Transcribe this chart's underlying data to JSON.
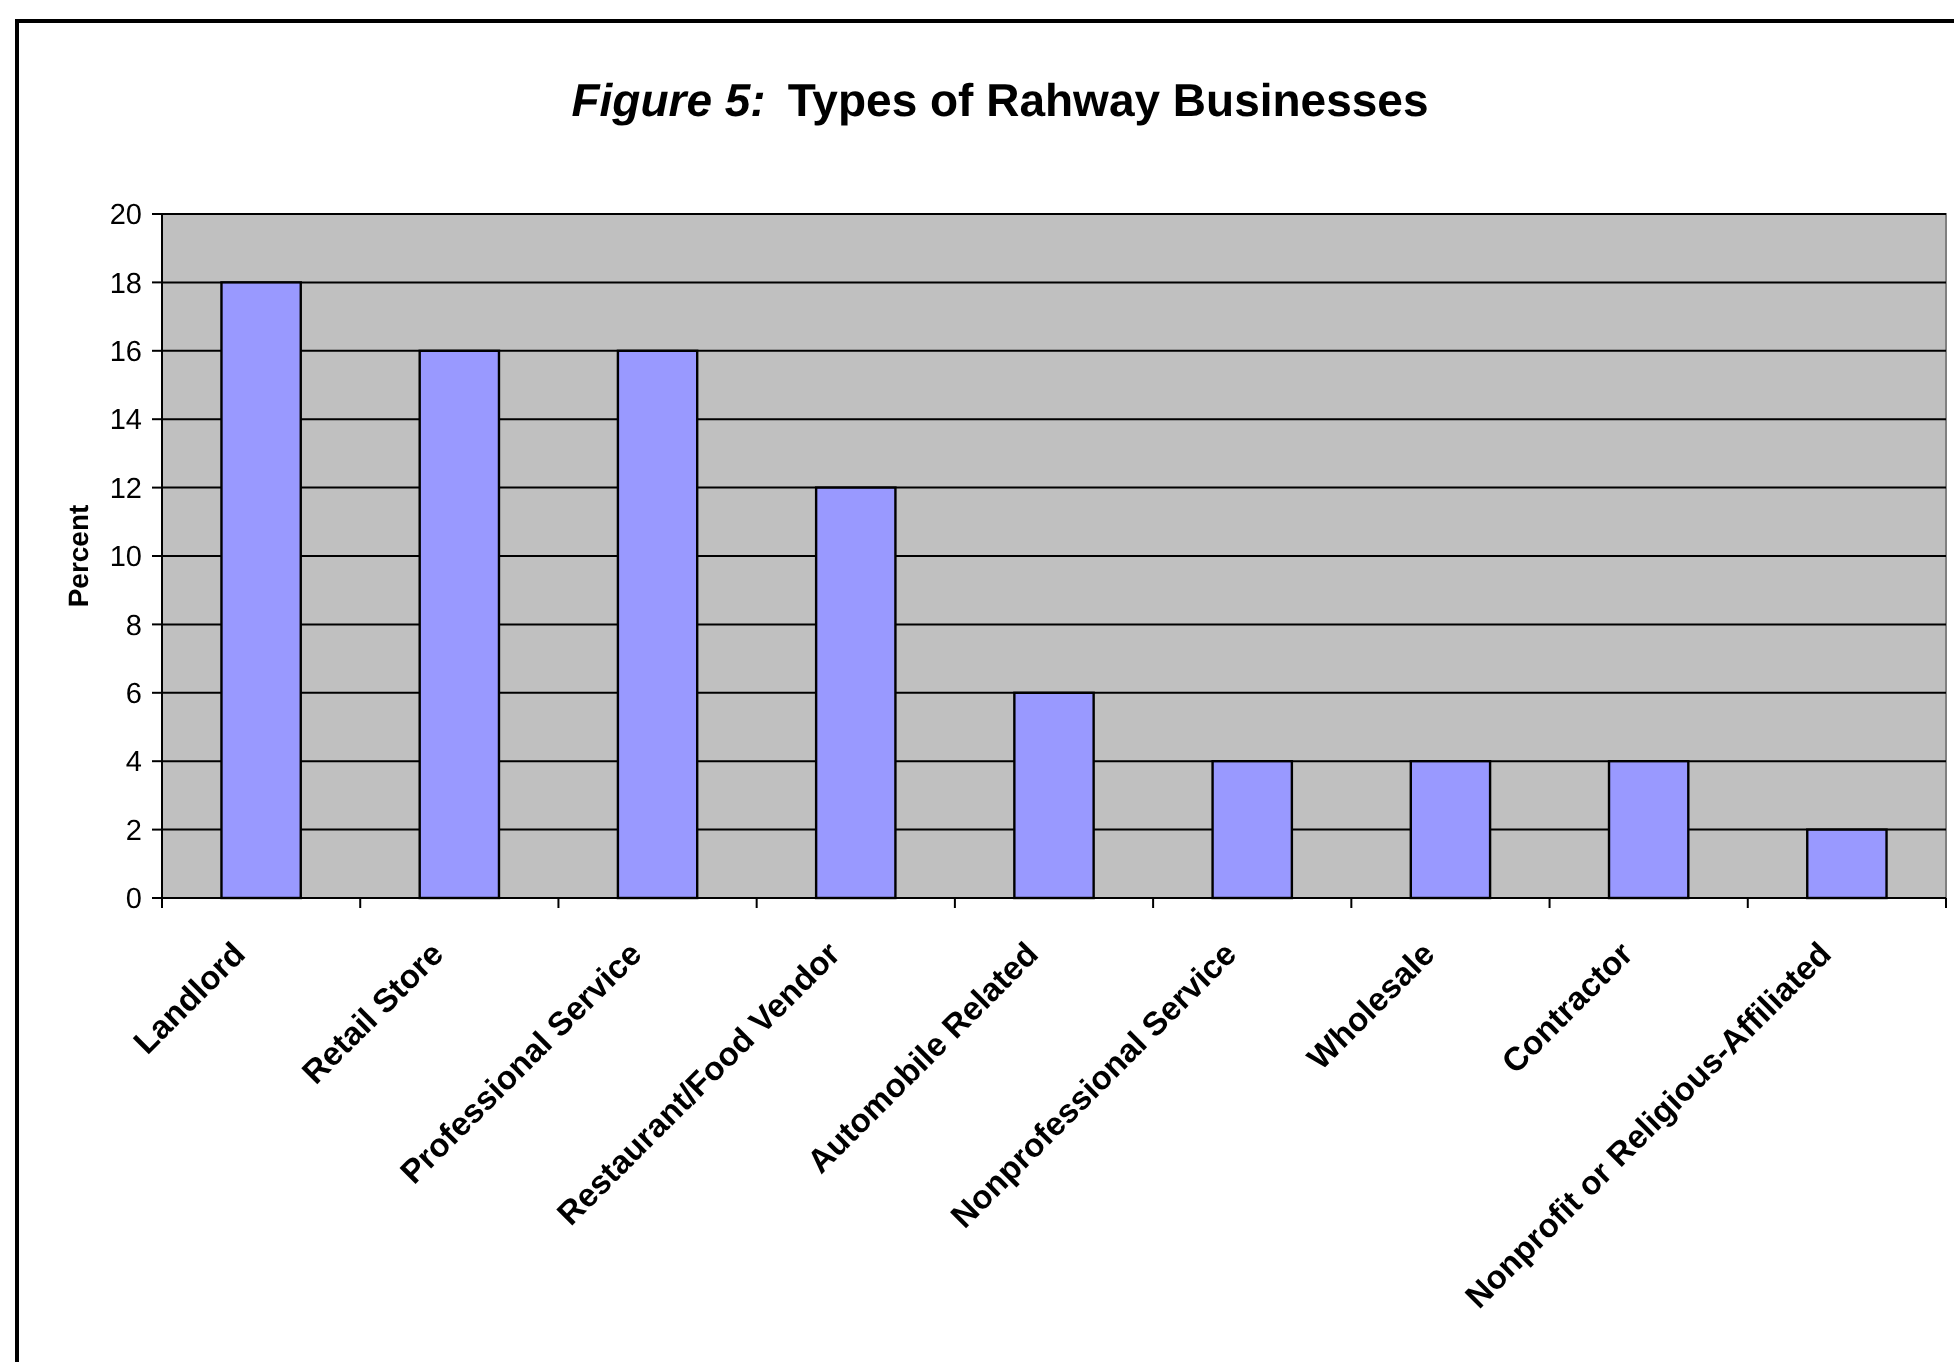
{
  "chart_data": {
    "type": "bar",
    "title": "Figure 5: Types of Rahway Businesses",
    "ylabel": "Percent",
    "categories": [
      "Landlord",
      "Retail Store",
      "Professional Service",
      "Restaurant/Food Vendor",
      "Automobile Related",
      "Nonprofessional Service",
      "Wholesale",
      "Contractor",
      "Nonprofit or Religious-Affiliated"
    ],
    "values": [
      18,
      16,
      16,
      12,
      6,
      4,
      4,
      4,
      2
    ],
    "color": "#9999ff",
    "ylim": [
      0,
      20
    ],
    "yticks": [
      0,
      2,
      4,
      6,
      8,
      10,
      12,
      14,
      16,
      18,
      20
    ],
    "grid": "y"
  }
}
